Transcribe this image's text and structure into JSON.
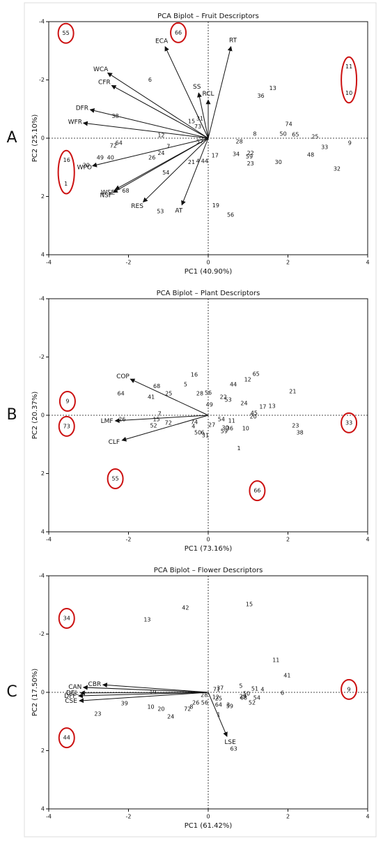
{
  "chart_data": [
    {
      "type": "biplot",
      "panel": "A",
      "title": "PCA Biplot – Fruit Descriptors",
      "x_label": "PC1 (40.90%)",
      "y_label": "PC2 (25.10%)",
      "xlim": [
        -4,
        4
      ],
      "ylim": [
        -4,
        4
      ],
      "xticks": [
        -4,
        -2,
        0,
        2,
        4
      ],
      "yticks": [
        -4,
        -2,
        0,
        2,
        4
      ],
      "y_inverted": true,
      "zero_lines": true,
      "points": {
        "labels": [
          "55",
          "66",
          "11",
          "10",
          "6",
          "13",
          "36",
          "38",
          "74",
          "15",
          "31",
          "73",
          "8",
          "50",
          "65",
          "25",
          "9",
          "33",
          "28",
          "12",
          "7",
          "57",
          "72",
          "64",
          "49",
          "40",
          "20",
          "16",
          "1",
          "26",
          "24",
          "17",
          "34",
          "22",
          "59",
          "23",
          "30",
          "48",
          "32",
          "21",
          "4",
          "44",
          "54",
          "68",
          "53",
          "19",
          "56"
        ],
        "x": [
          -3.57,
          -0.75,
          3.53,
          3.53,
          -1.46,
          1.62,
          1.32,
          -2.33,
          2.02,
          -0.42,
          -0.21,
          -0.26,
          1.17,
          1.88,
          2.19,
          2.68,
          3.55,
          2.92,
          0.78,
          -1.18,
          -1.0,
          -0.21,
          -2.38,
          -2.24,
          -2.71,
          -2.45,
          -3.06,
          -3.55,
          -3.57,
          -1.41,
          -1.18,
          0.17,
          0.7,
          1.06,
          1.03,
          1.06,
          1.76,
          2.57,
          3.23,
          -0.42,
          -0.26,
          -0.09,
          -1.06,
          -2.07,
          -1.2,
          0.19,
          0.56
        ],
        "y": [
          -3.6,
          -3.62,
          -2.45,
          -1.55,
          -2.0,
          -1.71,
          -1.45,
          -0.76,
          -0.48,
          -0.57,
          -0.67,
          -0.4,
          -0.14,
          -0.14,
          -0.12,
          -0.05,
          0.17,
          0.31,
          0.12,
          -0.1,
          0.29,
          0.12,
          0.26,
          0.17,
          0.67,
          0.67,
          0.93,
          0.76,
          1.57,
          0.67,
          0.52,
          0.6,
          0.55,
          0.52,
          0.64,
          0.88,
          0.83,
          0.57,
          1.05,
          0.83,
          0.79,
          0.79,
          1.19,
          1.81,
          2.52,
          2.31,
          2.64
        ]
      },
      "loadings": {
        "labels": [
          "ECA",
          "RT",
          "WCA",
          "CFR",
          "SS",
          "RCL",
          "DFR",
          "WFR",
          "WPO",
          "NSF",
          "WSE",
          "RES",
          "AT"
        ],
        "x": [
          -1.08,
          0.57,
          -2.52,
          -2.42,
          -0.24,
          0,
          -2.96,
          -3.13,
          -2.9,
          -2.38,
          -2.33,
          -1.63,
          -0.66
        ],
        "y": [
          -3.14,
          -3.14,
          -2.24,
          -1.81,
          -1.55,
          -1.31,
          -0.98,
          -0.52,
          0.95,
          1.86,
          1.76,
          2.19,
          2.29
        ]
      },
      "arrow_color": "#111111",
      "circle_color": "#cc1111",
      "circled": [
        [
          "55"
        ],
        [
          "66"
        ],
        [
          "11",
          "10"
        ],
        [
          "16",
          "1"
        ]
      ]
    },
    {
      "type": "biplot",
      "panel": "B",
      "title": "PCA Biplot – Plant Descriptors",
      "x_label": "PC1 (73.16%)",
      "y_label": "PC2 (20.37%)",
      "xlim": [
        -4,
        4
      ],
      "ylim": [
        -4,
        4
      ],
      "xticks": [
        -4,
        -2,
        0,
        2,
        4
      ],
      "yticks": [
        -4,
        -2,
        0,
        2,
        4
      ],
      "y_inverted": true,
      "zero_lines": true,
      "points": {
        "labels": [
          "9",
          "73",
          "33",
          "55",
          "66",
          "16",
          "65",
          "12",
          "44",
          "68",
          "5",
          "21",
          "28",
          "56",
          "25",
          "64",
          "41",
          "22",
          "53",
          "49",
          "24",
          "17",
          "13",
          "45",
          "20",
          "26",
          "7",
          "15",
          "52",
          "72",
          "74",
          "27",
          "4",
          "54",
          "11",
          "30",
          "36",
          "10",
          "59",
          "50",
          "6",
          "31",
          "23",
          "38",
          "1"
        ],
        "x": [
          -3.53,
          -3.55,
          3.53,
          -2.33,
          1.23,
          -0.35,
          1.2,
          0.99,
          0.63,
          -1.29,
          -0.57,
          2.12,
          -0.21,
          0,
          -0.99,
          -2.19,
          -1.43,
          0.38,
          0.5,
          0.03,
          0.9,
          1.37,
          1.6,
          1.15,
          1.13,
          -2.16,
          -1.22,
          -1.3,
          -1.37,
          -1.0,
          -0.35,
          0.09,
          -0.37,
          0.33,
          0.59,
          0.43,
          0.54,
          0.94,
          0.4,
          -0.26,
          -0.14,
          -0.07,
          2.19,
          2.3,
          0.77
        ],
        "y": [
          -0.48,
          0.38,
          0.26,
          2.18,
          2.59,
          -1.39,
          -1.41,
          -1.22,
          -1.05,
          -1.0,
          -1.05,
          -0.81,
          -0.74,
          -0.77,
          -0.74,
          -0.74,
          -0.62,
          -0.62,
          -0.53,
          -0.36,
          -0.41,
          -0.29,
          -0.31,
          -0.07,
          0.05,
          0.14,
          -0.05,
          0.14,
          0.36,
          0.26,
          0.24,
          0.34,
          0.38,
          0.14,
          0.19,
          0.43,
          0.46,
          0.46,
          0.55,
          0.6,
          0.6,
          0.69,
          0.36,
          0.6,
          1.14
        ]
      },
      "loadings": {
        "labels": [
          "COP",
          "LMF",
          "CLF"
        ],
        "x": [
          -1.95,
          -2.33,
          -2.16
        ],
        "y": [
          -1.24,
          0.19,
          0.86
        ]
      },
      "arrow_color": "#111111",
      "circle_color": "#cc1111",
      "circled": [
        [
          "9"
        ],
        [
          "73"
        ],
        [
          "33"
        ],
        [
          "55"
        ],
        [
          "66"
        ]
      ]
    },
    {
      "type": "biplot",
      "panel": "C",
      "title": "PCA Biplot – Flower Descriptors",
      "x_label": "PC1 (61.42%)",
      "y_label": "PC2 (17.50%)",
      "xlim": [
        -4,
        4
      ],
      "ylim": [
        -4,
        4
      ],
      "xticks": [
        -4,
        -2,
        0,
        2,
        4
      ],
      "yticks": [
        -4,
        -2,
        0,
        2,
        4
      ],
      "y_inverted": true,
      "zero_lines": true,
      "points": {
        "labels": [
          "34",
          "44",
          "9",
          "15",
          "42",
          "13",
          "11",
          "41",
          "5",
          "51",
          "4",
          "6",
          "19",
          "28",
          "71",
          "37",
          "12",
          "25",
          "39",
          "10",
          "20",
          "72",
          "8",
          "26",
          "56",
          "64",
          "3",
          "59",
          "1",
          "23",
          "24",
          "50",
          "29",
          "68",
          "54",
          "52",
          "63"
        ],
        "x": [
          -3.55,
          -3.55,
          3.53,
          1.03,
          -0.57,
          -1.53,
          1.7,
          1.98,
          0.82,
          1.17,
          1.36,
          1.86,
          -1.39,
          -0.1,
          0.21,
          0.3,
          0.19,
          0.26,
          -2.1,
          -1.44,
          -1.18,
          -0.52,
          -0.42,
          -0.31,
          -0.09,
          0.26,
          0.5,
          0.54,
          0.26,
          -2.77,
          -0.94,
          0.96,
          0.87,
          0.89,
          1.22,
          1.1,
          0.64
        ],
        "y": [
          -2.54,
          1.56,
          -0.1,
          -3.02,
          -2.9,
          -2.49,
          -1.1,
          -0.57,
          -0.22,
          -0.12,
          -0.1,
          0.02,
          0,
          0.1,
          -0.1,
          -0.14,
          0.17,
          0.22,
          0.38,
          0.5,
          0.57,
          0.57,
          0.5,
          0.36,
          0.36,
          0.43,
          0.43,
          0.48,
          0.77,
          0.74,
          0.84,
          0.05,
          0.14,
          0.19,
          0.19,
          0.36,
          1.94
        ]
      },
      "loadings": {
        "labels": [
          "CAN",
          "CBR",
          "DEL",
          "DFF",
          "CSE",
          "LSE"
        ],
        "x": [
          -3.13,
          -2.64,
          -3.2,
          -3.25,
          -3.23,
          0.47
        ],
        "y": [
          -0.17,
          -0.26,
          0.02,
          0.12,
          0.29,
          1.51
        ]
      },
      "arrow_color": "#111111",
      "circle_color": "#cc1111",
      "circled": [
        [
          "34"
        ],
        [
          "44"
        ],
        [
          "9"
        ]
      ]
    }
  ]
}
